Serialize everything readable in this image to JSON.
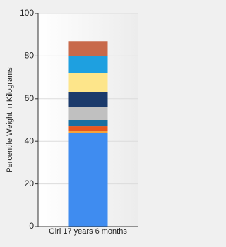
{
  "chart_data": {
    "type": "stacked-bar",
    "y_label": "Percentile Weight in Kilograms",
    "categories": [
      "Girl 17 years 6 months"
    ],
    "series": [
      {
        "color": "#3f8cf0",
        "values": [
          44
        ]
      },
      {
        "color": "#f7a23a",
        "values": [
          1
        ]
      },
      {
        "color": "#e8561d",
        "values": [
          2
        ]
      },
      {
        "color": "#1a6fa0",
        "values": [
          3
        ]
      },
      {
        "color": "#c0c0c0",
        "values": [
          6
        ]
      },
      {
        "color": "#1b3a6b",
        "values": [
          7
        ]
      },
      {
        "color": "#fde58a",
        "values": [
          9
        ]
      },
      {
        "color": "#1ea0e0",
        "values": [
          8
        ]
      },
      {
        "color": "#c8694a",
        "values": [
          7
        ]
      }
    ],
    "ylim": [
      0,
      100
    ],
    "yticks": [
      0,
      20,
      40,
      60,
      80,
      100
    ],
    "grid": true
  }
}
